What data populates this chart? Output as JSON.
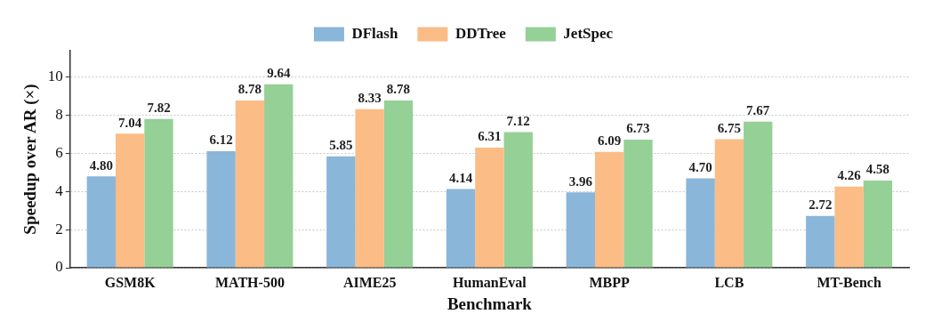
{
  "chart_data": {
    "type": "bar",
    "xlabel": "Benchmark",
    "ylabel": "Speedup over AR (×)",
    "categories": [
      "GSM8K",
      "MATH-500",
      "AIME25",
      "HumanEval",
      "MBPP",
      "LCB",
      "MT-Bench"
    ],
    "series": [
      {
        "name": "DFlash",
        "color": "#8ab6d9",
        "values": [
          4.8,
          6.12,
          5.85,
          4.14,
          3.96,
          4.7,
          2.72
        ],
        "value_labels": [
          "4.80",
          "6.12",
          "5.85",
          "4.14",
          "3.96",
          "4.70",
          "2.72"
        ]
      },
      {
        "name": "DDTree",
        "color": "#fbbc85",
        "values": [
          7.04,
          8.78,
          8.33,
          6.31,
          6.09,
          6.75,
          4.26
        ],
        "value_labels": [
          "7.04",
          "8.78",
          "8.33",
          "6.31",
          "6.09",
          "6.75",
          "4.26"
        ]
      },
      {
        "name": "JetSpec",
        "color": "#95d096",
        "values": [
          7.82,
          9.64,
          8.78,
          7.12,
          6.73,
          7.67,
          4.58
        ],
        "value_labels": [
          "7.82",
          "9.64",
          "8.78",
          "7.12",
          "6.73",
          "7.67",
          "4.58"
        ]
      }
    ],
    "ylim": [
      0,
      11.4
    ],
    "yticks": [
      0,
      2,
      4,
      6,
      8,
      10
    ],
    "grid": "y",
    "legend": "top"
  }
}
